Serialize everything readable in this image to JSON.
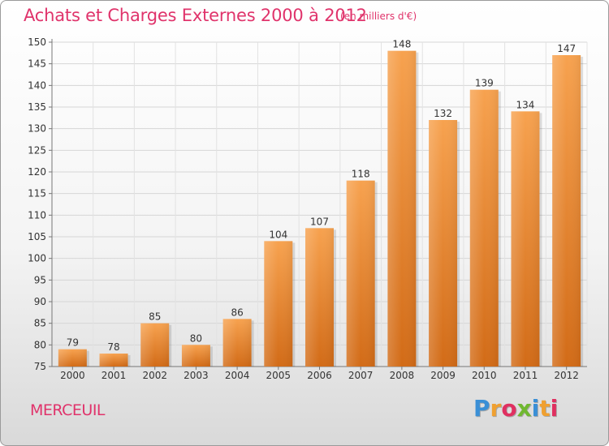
{
  "chart_data": {
    "type": "bar",
    "title": "Achats et Charges Externes 2000 à 2012",
    "subtitle": "(en milliers d'€)",
    "categories": [
      "2000",
      "2001",
      "2002",
      "2003",
      "2004",
      "2005",
      "2006",
      "2007",
      "2008",
      "2009",
      "2010",
      "2011",
      "2012"
    ],
    "values": [
      79,
      78,
      85,
      80,
      86,
      104,
      107,
      118,
      148,
      132,
      139,
      134,
      147
    ],
    "ylim": [
      75,
      150
    ],
    "yticks": [
      75,
      80,
      85,
      90,
      95,
      100,
      105,
      110,
      115,
      120,
      125,
      130,
      135,
      140,
      145,
      150
    ],
    "grid": true,
    "bar_color": "#f0923c",
    "bar_color_dark": "#d06a18"
  },
  "city": "MERCEUIL",
  "logo": {
    "letters": [
      "P",
      "r",
      "o",
      "x",
      "i",
      "t",
      "i"
    ],
    "colors": [
      "#3a8fd6",
      "#f0a030",
      "#e03060",
      "#70b830",
      "#3a8fd6",
      "#f0a030",
      "#e03060"
    ]
  }
}
